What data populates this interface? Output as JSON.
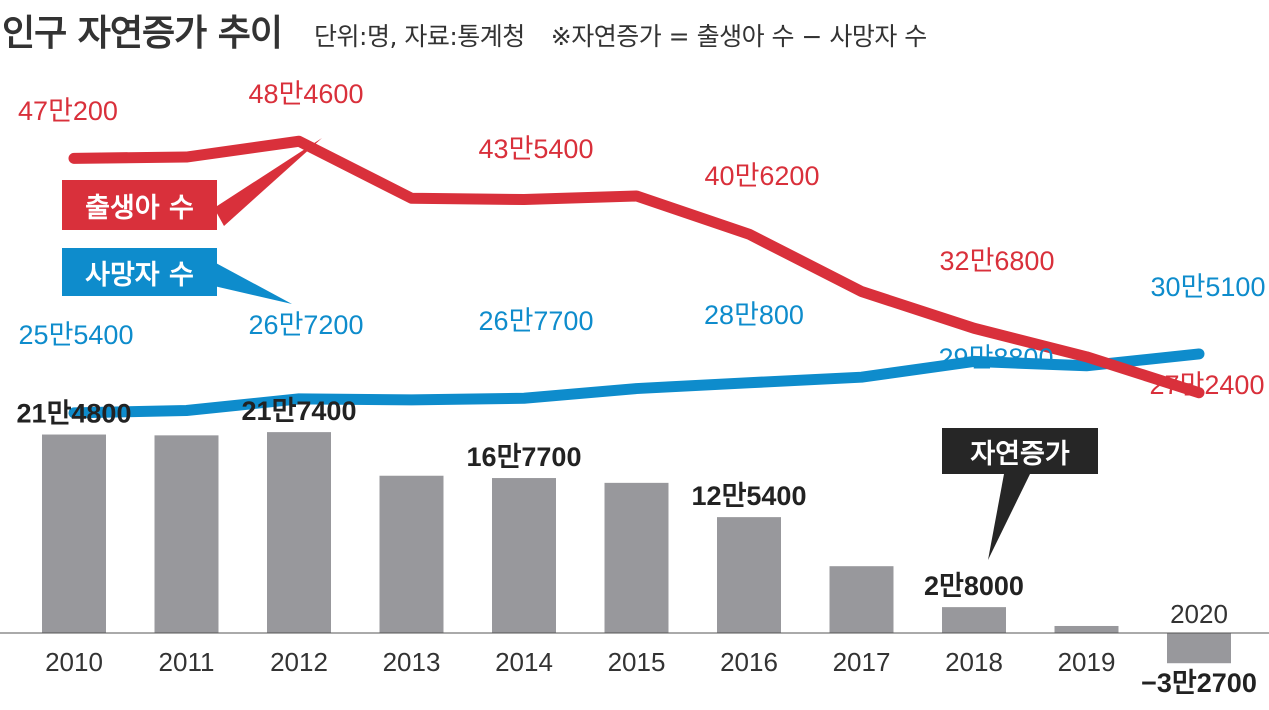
{
  "title": "인구 자연증가 추이",
  "meta": "단위:명, 자료:통계청",
  "formula": "※자연증가 = 출생아 수 − 사망자 수",
  "colors": {
    "births": "#d9303b",
    "deaths": "#0e8ccc",
    "bars": "#98989c",
    "callout": "#262626",
    "text": "#333333"
  },
  "legend": {
    "births": "출생아 수",
    "deaths": "사망자 수",
    "natural": "자연증가"
  },
  "chart_data": {
    "type": "line+bar",
    "title": "인구 자연증가 추이",
    "unit": "명",
    "source": "통계청",
    "categories": [
      "2010",
      "2011",
      "2012",
      "2013",
      "2014",
      "2015",
      "2016",
      "2017",
      "2018",
      "2019",
      "2020"
    ],
    "series": [
      {
        "name": "출생아 수",
        "type": "line",
        "values": [
          470200,
          471300,
          484600,
          436500,
          435400,
          438400,
          406200,
          357800,
          326800,
          302700,
          272400
        ],
        "labels": [
          "47만200",
          "",
          "48만4600",
          "",
          "43만5400",
          "",
          "40만6200",
          "",
          "32만6800",
          "",
          "27만2400"
        ]
      },
      {
        "name": "사망자 수",
        "type": "line",
        "values": [
          255400,
          257400,
          267200,
          266300,
          267700,
          275900,
          280800,
          285500,
          298800,
          295100,
          305100
        ],
        "labels": [
          "25만5400",
          "",
          "26만7200",
          "",
          "26만7700",
          "",
          "28만800",
          "",
          "29만8800",
          "",
          "30만5100"
        ]
      },
      {
        "name": "자연증가",
        "type": "bar",
        "values": [
          214800,
          213900,
          217400,
          170200,
          167700,
          162500,
          125400,
          72300,
          28000,
          7600,
          -32700
        ],
        "labels": [
          "21만4800",
          "",
          "21만7400",
          "",
          "16만7700",
          "",
          "12만5400",
          "",
          "2만8000",
          "",
          "−3만2700"
        ]
      }
    ]
  }
}
